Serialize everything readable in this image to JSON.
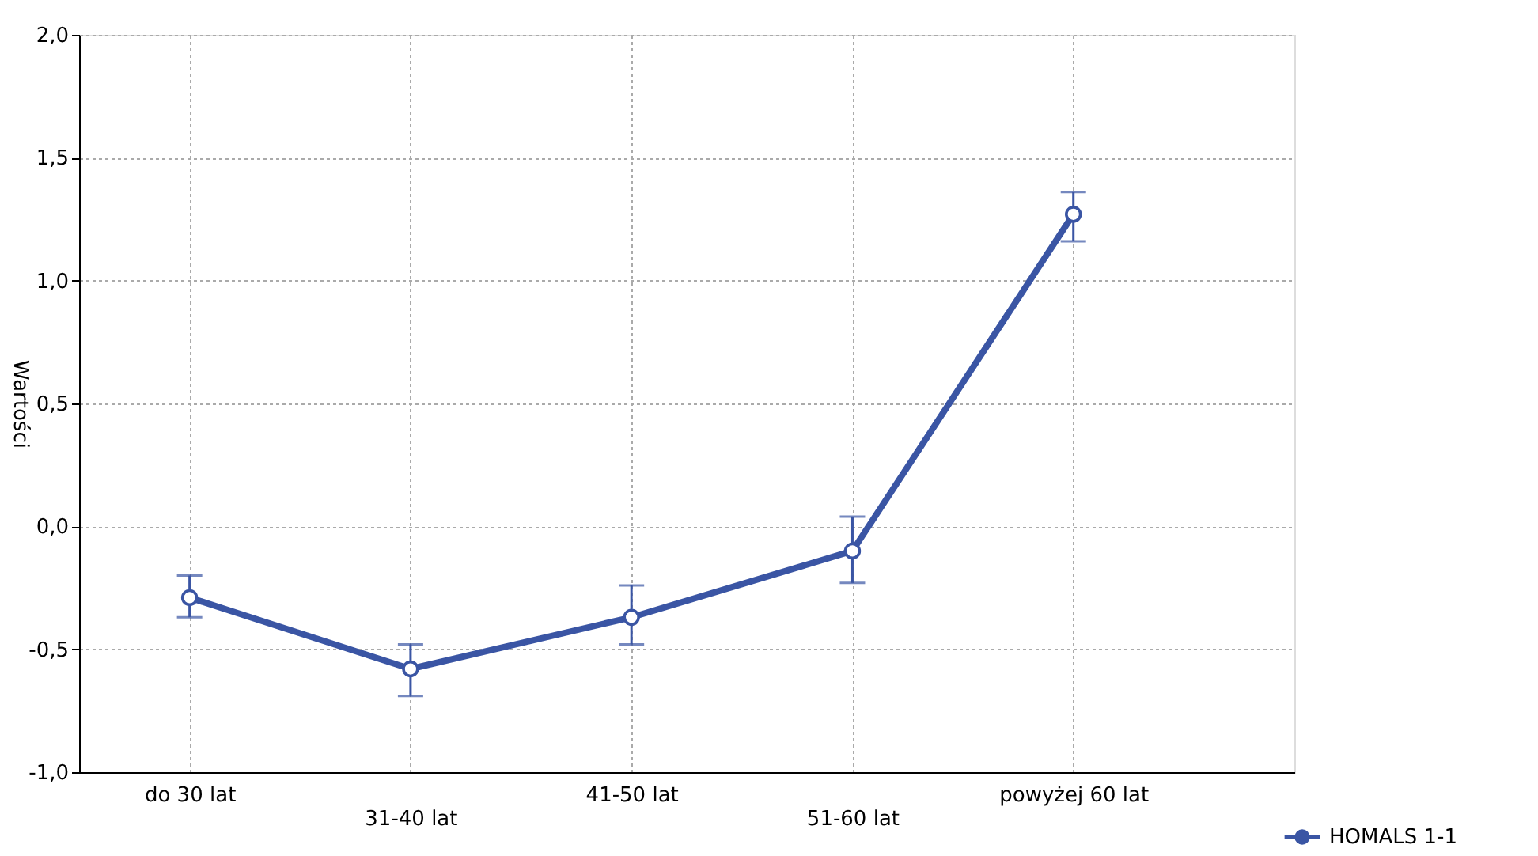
{
  "chart_data": {
    "type": "line",
    "ylabel": "Wartości",
    "categories": [
      "do 30 lat",
      "31-40 lat",
      "41-50 lat",
      "51-60 lat",
      "powyżej 60 lat"
    ],
    "series": [
      {
        "name": "HOMALS 1-1",
        "color": "#3a55a4",
        "values": [
          -0.29,
          -0.58,
          -0.37,
          -0.1,
          1.27
        ],
        "errors": [
          [
            -0.37,
            -0.2
          ],
          [
            -0.69,
            -0.48
          ],
          [
            -0.48,
            -0.24
          ],
          [
            -0.23,
            0.04
          ],
          [
            1.16,
            1.36
          ]
        ]
      }
    ],
    "ylim": [
      -1.0,
      2.0
    ],
    "yticks": [
      {
        "value": -1.0,
        "label": "-1,0"
      },
      {
        "value": -0.5,
        "label": "-0,5"
      },
      {
        "value": 0.0,
        "label": "0,0"
      },
      {
        "value": 0.5,
        "label": "0,5"
      },
      {
        "value": 1.0,
        "label": "1,0"
      },
      {
        "value": 1.5,
        "label": "1,5"
      },
      {
        "value": 2.0,
        "label": "2,0"
      }
    ],
    "grid": true,
    "legend": "bottom right",
    "marker": "circle",
    "line_style": "solid"
  }
}
